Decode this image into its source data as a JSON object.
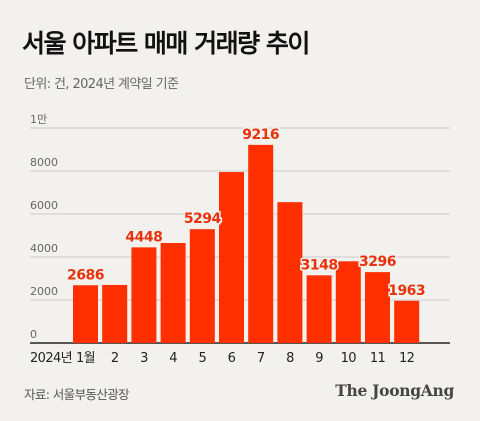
{
  "title": "서울 아파트 매매 거래량 추이",
  "subtitle": "단위: 건, 2024년 계약일 기준",
  "source": "자료: 서울부동산광장",
  "brand": "The JoongAng",
  "colors": {
    "bar": "#ff2f00",
    "label": "#e8320c",
    "background": "#f2f1ee",
    "grid": "#bbbbbb"
  },
  "chart_data": {
    "type": "bar",
    "title": "서울 아파트 매매 거래량 추이",
    "year_label": "2024년",
    "categories": [
      "1월",
      "2",
      "3",
      "4",
      "5",
      "6",
      "7",
      "8",
      "9",
      "10",
      "11",
      "12"
    ],
    "values": [
      2686,
      2700,
      4448,
      4650,
      5294,
      7950,
      9216,
      6550,
      3148,
      3800,
      3296,
      1963
    ],
    "labeled": [
      true,
      false,
      true,
      false,
      true,
      false,
      true,
      false,
      true,
      false,
      true,
      true
    ],
    "y_ticks": [
      "0",
      "2000",
      "4000",
      "6000",
      "8000",
      "1만"
    ],
    "y_tick_values": [
      0,
      2000,
      4000,
      6000,
      8000,
      10000
    ],
    "ylim": [
      0,
      10000
    ],
    "grid": true,
    "unit": "건"
  }
}
